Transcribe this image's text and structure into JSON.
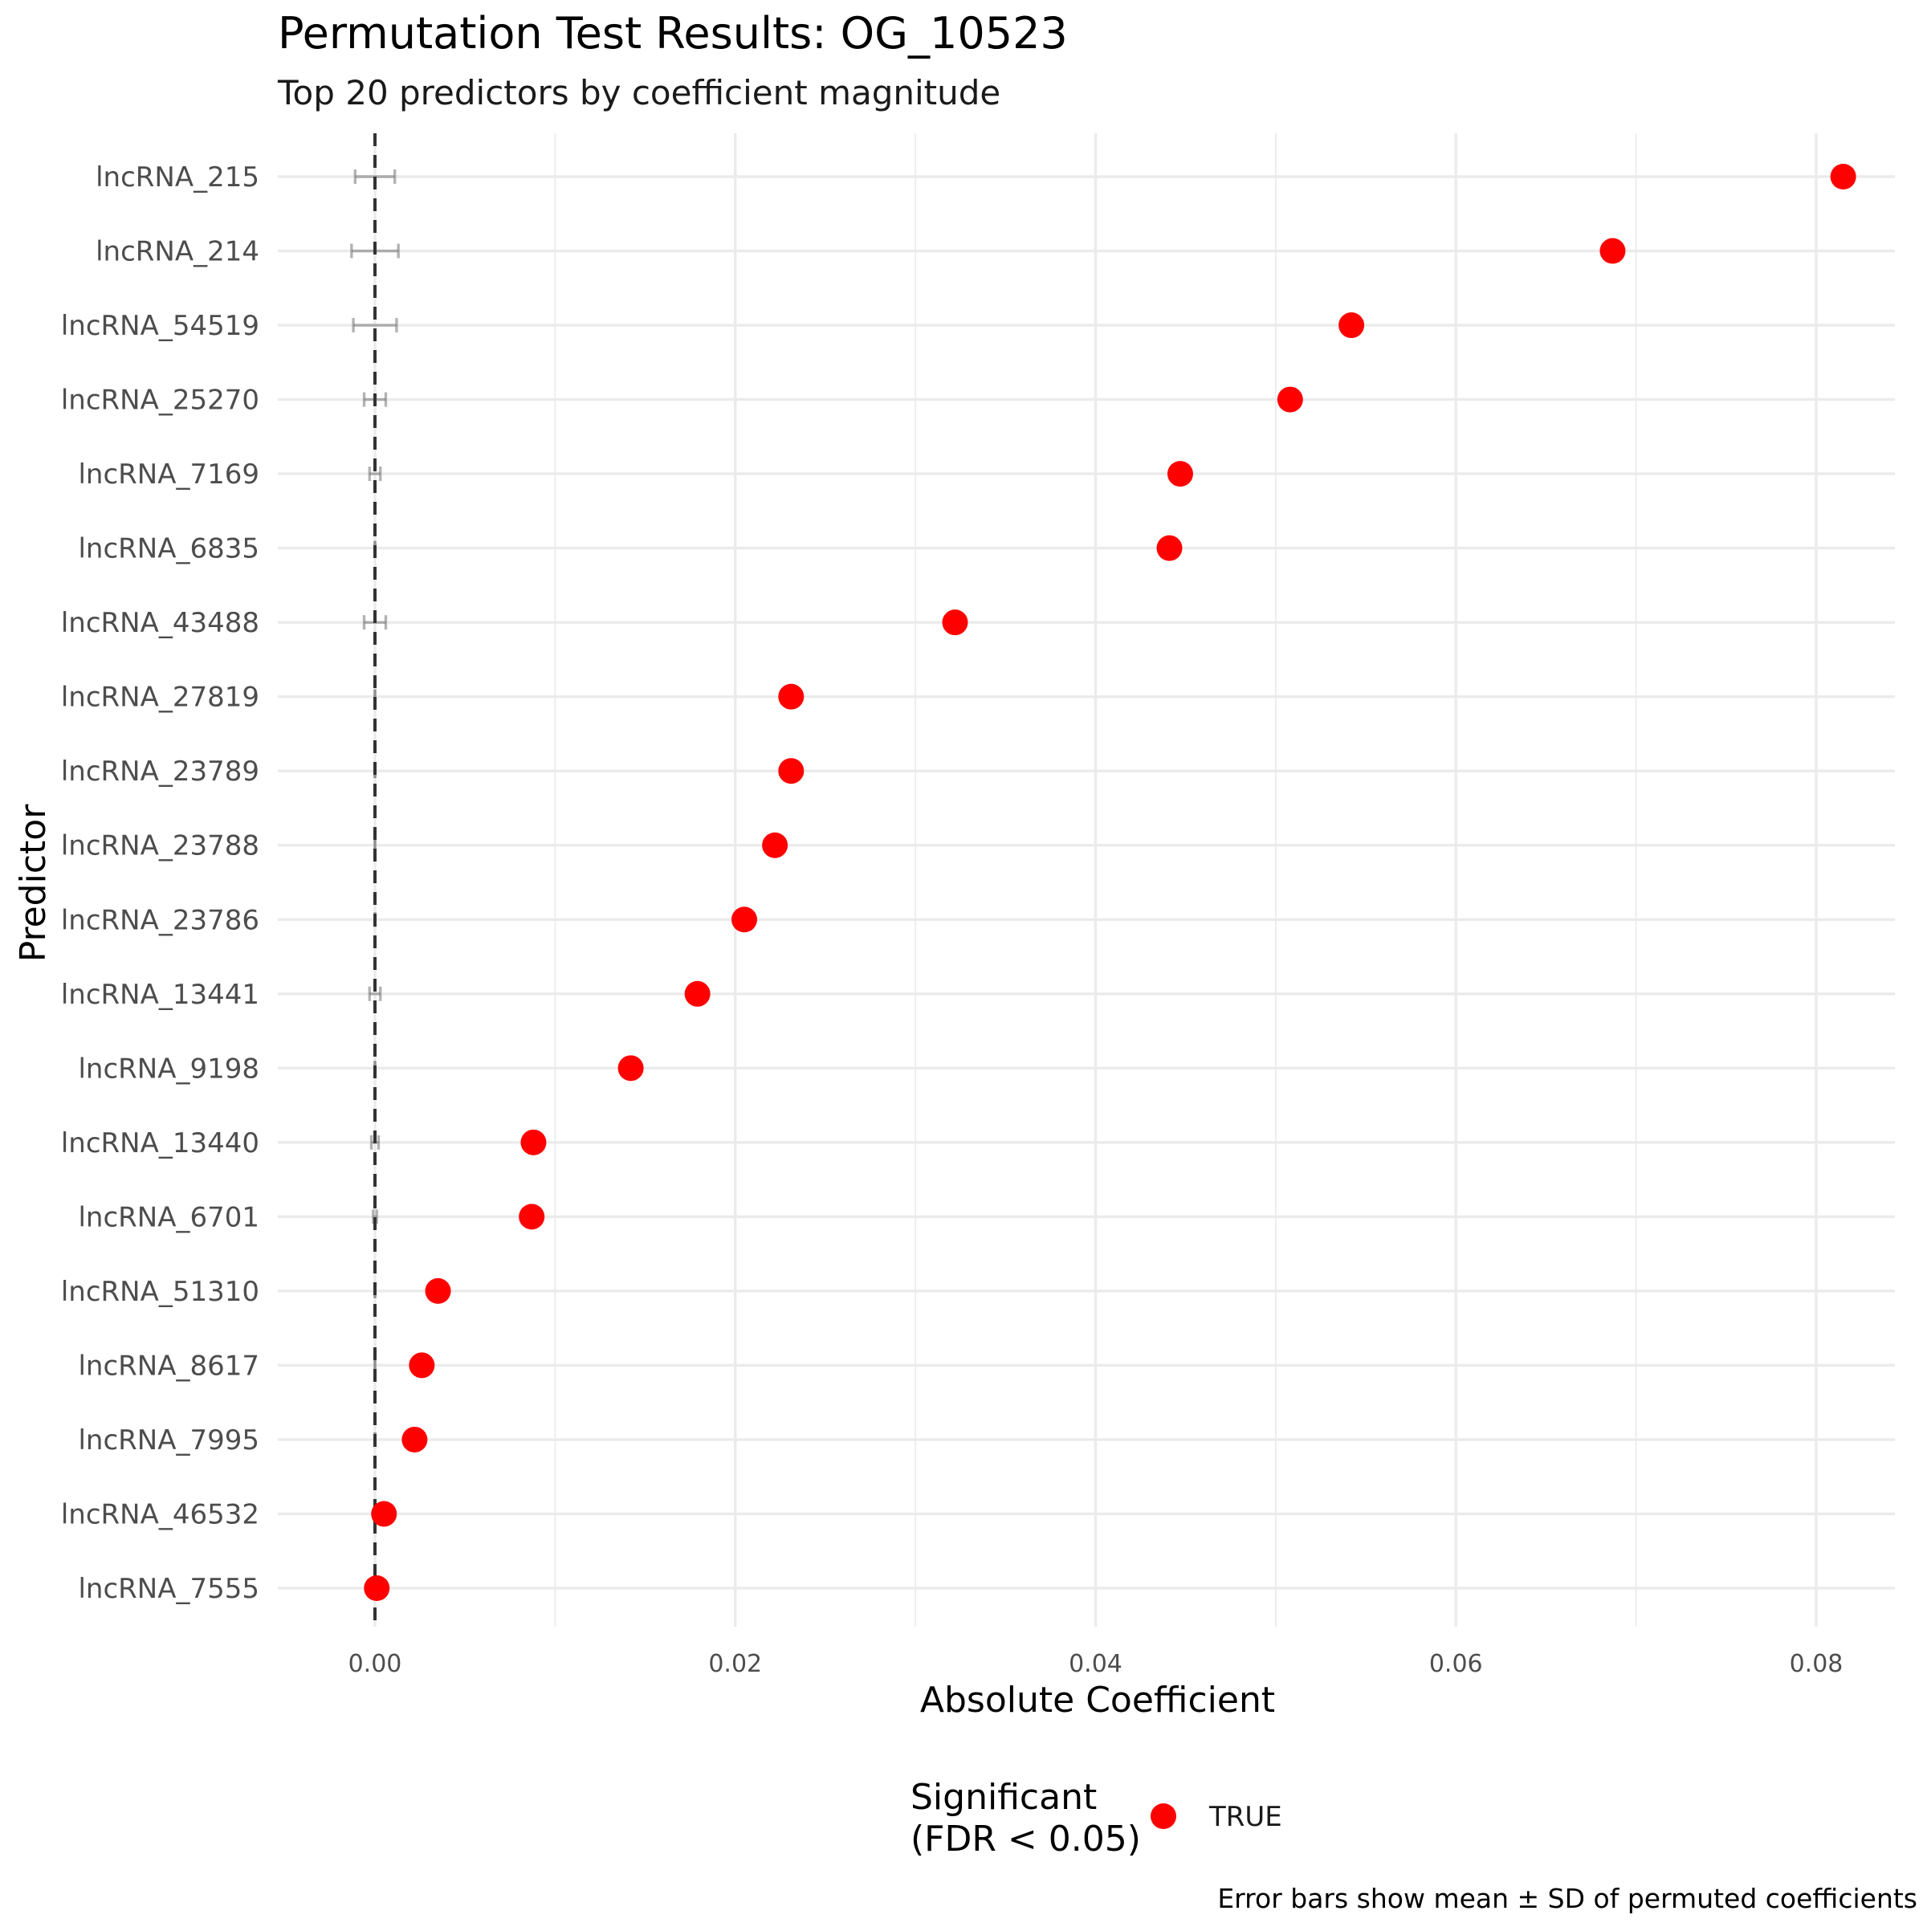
{
  "chart_data": {
    "type": "scatter",
    "title": "Permutation Test Results: OG_10523",
    "subtitle": "Top 20 predictors by coefficient magnitude",
    "xlabel": "Absolute Coefficient",
    "ylabel": "Predictor",
    "xlim": [
      -0.0055,
      0.0855
    ],
    "xticks": [
      0.0,
      0.02,
      0.04,
      0.06,
      0.08
    ],
    "xtick_labels": [
      "0.00",
      "0.02",
      "0.04",
      "0.06",
      "0.08"
    ],
    "reference_line": {
      "x": 0.0,
      "style": "dashed"
    },
    "grid": true,
    "point_color": "#ff0000",
    "errorbar_color": "#808080",
    "legend": {
      "title": "Significant\n(FDR < 0.05)",
      "entries": [
        {
          "label": "TRUE",
          "color": "#ff0000"
        }
      ],
      "position": "bottom"
    },
    "caption": "Error bars show mean ± SD of permuted coefficients",
    "categories": [
      "lncRNA_215",
      "lncRNA_214",
      "lncRNA_54519",
      "lncRNA_25270",
      "lncRNA_7169",
      "lncRNA_6835",
      "lncRNA_43488",
      "lncRNA_27819",
      "lncRNA_23789",
      "lncRNA_23788",
      "lncRNA_23786",
      "lncRNA_13441",
      "lncRNA_9198",
      "lncRNA_13440",
      "lncRNA_6701",
      "lncRNA_51310",
      "lncRNA_8617",
      "lncRNA_7995",
      "lncRNA_46532",
      "lncRNA_7555"
    ],
    "values": [
      0.0815,
      0.0687,
      0.0542,
      0.0508,
      0.0447,
      0.0441,
      0.0322,
      0.0231,
      0.0231,
      0.0222,
      0.0205,
      0.0179,
      0.0142,
      0.0088,
      0.0087,
      0.0035,
      0.0026,
      0.0022,
      0.0005,
      0.0001
    ],
    "significant": [
      true,
      true,
      true,
      true,
      true,
      true,
      true,
      true,
      true,
      true,
      true,
      true,
      true,
      true,
      true,
      true,
      true,
      true,
      true,
      true
    ],
    "perm_mean": [
      0.0,
      0.0,
      0.0,
      0.0,
      0.0,
      0.0,
      0.0,
      0.0,
      0.0,
      0.0,
      0.0,
      0.0,
      0.0,
      0.0,
      0.0,
      0.0,
      0.0,
      0.0,
      0.0,
      0.0
    ],
    "perm_sd": [
      0.0011,
      0.0013,
      0.0012,
      0.0006,
      0.0003,
      0.0,
      0.0006,
      0.0,
      0.0,
      0.0,
      0.0,
      0.0003,
      0.0,
      0.0002,
      0.0001,
      0.0,
      0.0,
      0.0,
      0.0,
      0.0
    ]
  }
}
